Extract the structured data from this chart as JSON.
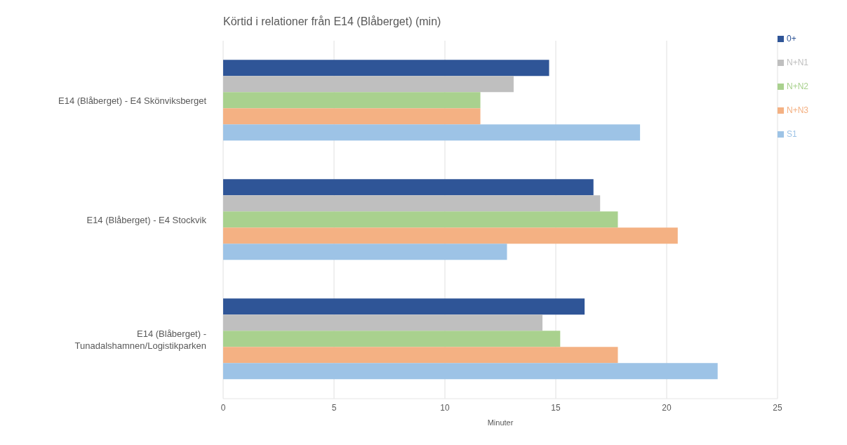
{
  "chart_data": {
    "type": "bar",
    "orientation": "horizontal",
    "title": "Körtid i relationer från E14 (Blåberget) (min)",
    "xlabel": "Minuter",
    "categories": [
      "E14 (Blåberget) - E4 Skönviksberget",
      "E14 (Blåberget) - E4 Stockvik",
      "E14 (Blåberget) - Tunadalshamnen/Logistikparken"
    ],
    "series": [
      {
        "name": "0+",
        "color": "#2f5597",
        "values": [
          14.7,
          16.7,
          16.3
        ]
      },
      {
        "name": "N+N1",
        "color": "#bfbfbf",
        "values": [
          13.1,
          17.0,
          14.4
        ]
      },
      {
        "name": "N+N2",
        "color": "#a9d18e",
        "values": [
          11.6,
          17.8,
          15.2
        ]
      },
      {
        "name": "N+N3",
        "color": "#f4b183",
        "values": [
          11.6,
          20.5,
          17.8
        ]
      },
      {
        "name": "S1",
        "color": "#9dc3e6",
        "values": [
          18.8,
          12.8,
          22.3
        ]
      }
    ],
    "xlim": [
      0,
      25
    ],
    "xticks": [
      0,
      5,
      10,
      15,
      20,
      25
    ],
    "grid": "x",
    "legend": "right"
  }
}
